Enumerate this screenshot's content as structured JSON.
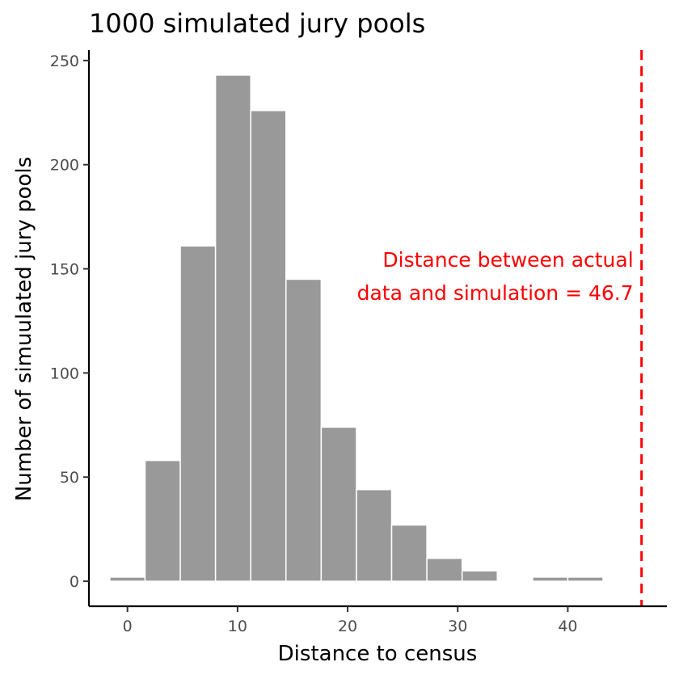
{
  "chart_data": {
    "type": "bar",
    "title": "1000 simulated jury pools",
    "xlabel": "Distance to census",
    "ylabel": "Number of simuulated jury pools",
    "xlim": [
      -3.5,
      49
    ],
    "ylim": [
      -12,
      255
    ],
    "x_ticks": [
      0,
      10,
      20,
      30,
      40
    ],
    "y_ticks": [
      0,
      50,
      100,
      150,
      200,
      250
    ],
    "grid": false,
    "bin_width": 3.2,
    "bins": [
      {
        "x": 0.0,
        "count": 2
      },
      {
        "x": 3.2,
        "count": 58
      },
      {
        "x": 6.4,
        "count": 161
      },
      {
        "x": 9.6,
        "count": 243
      },
      {
        "x": 12.8,
        "count": 226
      },
      {
        "x": 16.0,
        "count": 145
      },
      {
        "x": 19.2,
        "count": 74
      },
      {
        "x": 22.4,
        "count": 44
      },
      {
        "x": 25.6,
        "count": 27
      },
      {
        "x": 28.8,
        "count": 11
      },
      {
        "x": 32.0,
        "count": 5
      },
      {
        "x": 35.2,
        "count": 0
      },
      {
        "x": 38.4,
        "count": 2
      },
      {
        "x": 41.6,
        "count": 2
      }
    ],
    "bar_color": "#999999",
    "reference_line": {
      "x": 46.7,
      "color": "#ff0000",
      "style": "dashed",
      "label_lines": [
        "Distance between actual",
        "data and simulation = 46.7"
      ]
    }
  }
}
